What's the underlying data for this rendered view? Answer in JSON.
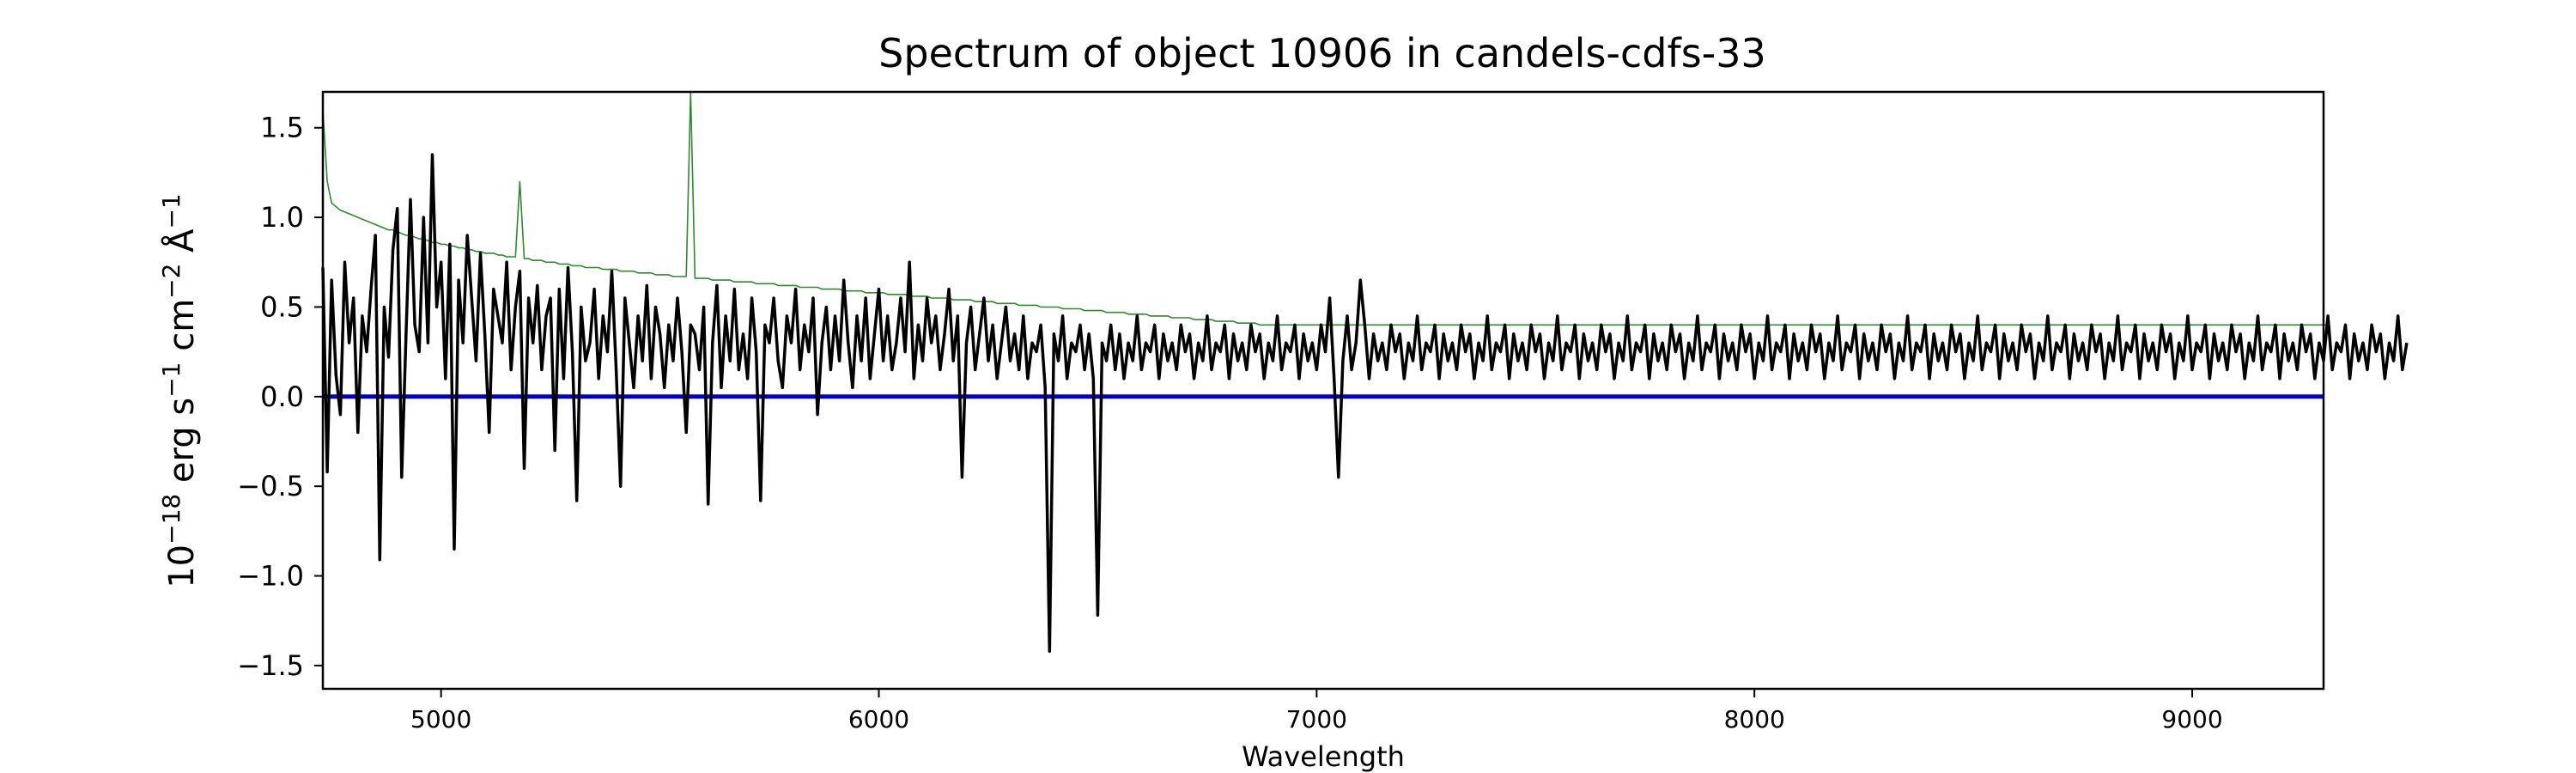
{
  "chart_data": {
    "type": "line",
    "title": "Spectrum of object 10906 in candels-cdfs-33",
    "xlabel": "Wavelength",
    "ylabel": {
      "base": "10",
      "base_exp": "−18",
      "unit1": " erg s",
      "unit1_exp": "−1",
      "unit2": " cm",
      "unit2_exp": "−2",
      "unit3": " Å",
      "unit3_exp": "−1"
    },
    "xlim": [
      4730,
      9300
    ],
    "ylim": [
      -1.63,
      1.7
    ],
    "x_ticks": [
      5000,
      6000,
      7000,
      8000,
      9000
    ],
    "x_tick_labels": [
      "5000",
      "6000",
      "7000",
      "8000",
      "9000"
    ],
    "y_ticks": [
      1.5,
      1.0,
      0.5,
      0.0,
      -0.5,
      -1.0,
      -1.5
    ],
    "y_tick_labels": [
      "1.5",
      "1.0",
      "0.5",
      "0.0",
      "−0.5",
      "−1.0",
      "−1.5"
    ],
    "grid": false,
    "legend": "none",
    "series": [
      {
        "role": "flux",
        "color": "#000000",
        "x_start": 4730,
        "x_end": 9300,
        "step": 10,
        "values": [
          0.72,
          -0.42,
          0.65,
          0.12,
          -0.1,
          0.75,
          0.3,
          0.55,
          -0.2,
          0.45,
          0.25,
          0.6,
          0.9,
          -0.91,
          0.5,
          0.22,
          0.82,
          1.05,
          -0.45,
          0.35,
          1.1,
          0.4,
          0.25,
          1.0,
          0.3,
          1.35,
          0.5,
          0.75,
          0.1,
          0.85,
          -0.85,
          0.65,
          0.3,
          0.9,
          0.55,
          0.2,
          0.8,
          0.35,
          -0.2,
          0.6,
          0.45,
          0.3,
          0.75,
          0.15,
          0.5,
          0.7,
          -0.4,
          0.55,
          0.3,
          0.62,
          0.15,
          0.45,
          0.55,
          -0.3,
          0.6,
          0.1,
          0.72,
          0.25,
          -0.58,
          0.5,
          0.2,
          0.3,
          0.6,
          0.1,
          0.45,
          0.25,
          0.7,
          0.15,
          -0.5,
          0.55,
          0.3,
          0.05,
          0.45,
          0.2,
          0.62,
          0.1,
          0.5,
          0.35,
          0.05,
          0.4,
          0.2,
          0.55,
          0.25,
          -0.2,
          0.4,
          0.35,
          0.15,
          0.5,
          -0.6,
          0.3,
          0.62,
          0.05,
          0.45,
          0.2,
          0.6,
          0.15,
          0.35,
          0.1,
          0.55,
          0.25,
          -0.58,
          0.4,
          0.3,
          0.55,
          0.2,
          0.05,
          0.45,
          0.3,
          0.6,
          0.15,
          0.4,
          0.25,
          0.55,
          -0.1,
          0.3,
          0.5,
          0.15,
          0.45,
          0.2,
          0.65,
          0.3,
          0.05,
          0.45,
          0.2,
          0.55,
          0.1,
          0.35,
          0.6,
          0.2,
          0.45,
          0.15,
          0.3,
          0.55,
          0.25,
          0.75,
          0.1,
          0.4,
          0.2,
          0.55,
          0.3,
          0.45,
          0.15,
          0.35,
          0.6,
          0.2,
          0.45,
          -0.45,
          0.3,
          0.5,
          0.15,
          0.35,
          0.55,
          0.2,
          0.4,
          0.1,
          0.3,
          0.5,
          0.2,
          0.35,
          0.15,
          0.45,
          0.1,
          0.3,
          0.25,
          0.4,
          0.05,
          -1.42,
          0.35,
          0.2,
          0.45,
          0.1,
          0.3,
          0.25,
          0.4,
          0.15,
          0.35,
          0.1,
          -1.22,
          0.3,
          0.2,
          0.4,
          0.15,
          0.35,
          0.1,
          0.3,
          0.2,
          0.45,
          0.15,
          0.3,
          0.25,
          0.4,
          0.1,
          0.35,
          0.2,
          0.3,
          0.15,
          0.4,
          0.25,
          0.35,
          0.1,
          0.3,
          0.2,
          0.45,
          0.15,
          0.3,
          0.25,
          0.4,
          0.1,
          0.35,
          0.2,
          0.3,
          0.15,
          0.4,
          0.25,
          0.35,
          0.1,
          0.3,
          0.2,
          0.45,
          0.15,
          0.3,
          0.25,
          0.4,
          0.1,
          0.35,
          0.2,
          0.3,
          0.15,
          0.4,
          0.25,
          0.55,
          0.1,
          -0.45,
          0.2,
          0.45,
          0.15,
          0.3,
          0.65,
          0.4,
          0.1,
          0.35,
          0.2,
          0.3,
          0.15,
          0.4,
          0.25,
          0.35,
          0.1,
          0.3,
          0.2,
          0.45,
          0.15,
          0.3,
          0.25,
          0.4,
          0.1,
          0.35,
          0.2,
          0.3,
          0.15,
          0.4,
          0.25,
          0.35,
          0.1,
          0.3,
          0.2,
          0.45,
          0.15,
          0.3,
          0.25,
          0.4,
          0.1,
          0.35,
          0.2,
          0.3,
          0.15,
          0.4,
          0.25,
          0.35,
          0.1,
          0.3,
          0.2,
          0.45,
          0.15,
          0.3,
          0.25,
          0.4,
          0.1,
          0.35,
          0.2,
          0.3,
          0.15,
          0.4,
          0.25,
          0.35,
          0.1,
          0.3,
          0.2,
          0.45,
          0.15,
          0.3,
          0.25,
          0.4,
          0.1,
          0.35,
          0.2,
          0.3,
          0.15,
          0.4,
          0.25,
          0.35,
          0.1,
          0.3,
          0.2,
          0.45,
          0.15,
          0.3,
          0.25,
          0.4,
          0.1,
          0.35,
          0.2,
          0.3,
          0.15,
          0.4,
          0.25,
          0.35,
          0.1,
          0.3,
          0.2,
          0.45,
          0.15,
          0.3,
          0.25,
          0.4,
          0.1,
          0.35,
          0.2,
          0.3,
          0.15,
          0.4,
          0.25,
          0.35,
          0.1,
          0.3,
          0.2,
          0.45,
          0.15,
          0.3,
          0.25,
          0.4,
          0.1,
          0.35,
          0.2,
          0.3,
          0.15,
          0.4,
          0.25,
          0.35,
          0.1,
          0.3,
          0.2,
          0.45,
          0.15,
          0.3,
          0.25,
          0.4,
          0.1,
          0.35,
          0.2,
          0.3,
          0.15,
          0.4,
          0.25,
          0.35,
          0.1,
          0.3,
          0.2,
          0.45,
          0.15,
          0.3,
          0.25,
          0.4,
          0.1,
          0.35,
          0.2,
          0.3,
          0.15,
          0.4,
          0.25,
          0.35,
          0.1,
          0.3,
          0.2,
          0.45,
          0.15,
          0.3,
          0.25,
          0.4,
          0.1,
          0.35,
          0.2,
          0.3,
          0.15,
          0.4,
          0.25,
          0.35,
          0.1,
          0.3,
          0.2,
          0.45,
          0.15,
          0.3,
          0.25,
          0.4,
          0.1,
          0.35,
          0.2,
          0.3,
          0.15,
          0.4,
          0.25,
          0.35,
          0.1,
          0.3,
          0.2,
          0.45,
          0.15,
          0.3,
          0.25,
          0.4,
          0.1,
          0.35,
          0.2,
          0.3,
          0.15,
          0.4,
          0.25,
          0.35,
          0.1,
          0.3,
          0.2,
          0.45,
          0.15,
          0.3,
          0.25,
          0.4,
          0.1,
          0.35,
          0.2,
          0.3,
          0.15,
          0.4,
          0.25,
          0.35,
          0.1,
          0.3,
          0.2,
          0.45,
          0.15,
          0.3,
          0.25,
          0.4,
          0.1,
          0.35,
          0.2,
          0.3,
          0.15,
          0.4,
          0.25,
          0.35,
          0.1,
          0.3,
          0.2,
          0.45,
          0.15,
          0.3
        ]
      },
      {
        "role": "error",
        "color": "#2e8b2e",
        "x_start": 4730,
        "x_end": 9300,
        "step": 10,
        "values": [
          1.6,
          1.2,
          1.08,
          1.06,
          1.04,
          1.03,
          1.02,
          1.01,
          1.0,
          0.99,
          0.98,
          0.97,
          0.96,
          0.95,
          0.94,
          0.93,
          0.93,
          0.92,
          0.91,
          0.9,
          0.9,
          0.89,
          0.88,
          0.88,
          0.87,
          0.86,
          0.86,
          0.85,
          0.85,
          0.84,
          0.84,
          0.83,
          0.83,
          0.82,
          0.82,
          0.81,
          0.81,
          0.8,
          0.8,
          0.8,
          0.79,
          0.79,
          0.78,
          0.78,
          0.78,
          1.2,
          0.77,
          0.77,
          0.76,
          0.76,
          0.76,
          0.75,
          0.75,
          0.75,
          0.74,
          0.74,
          0.74,
          0.73,
          0.73,
          0.73,
          0.72,
          0.72,
          0.72,
          0.72,
          0.71,
          0.71,
          0.71,
          0.71,
          0.7,
          0.7,
          0.7,
          0.7,
          0.69,
          0.69,
          0.69,
          0.69,
          0.68,
          0.68,
          0.68,
          0.68,
          0.67,
          0.67,
          0.67,
          0.67,
          1.7,
          0.66,
          0.66,
          0.66,
          0.66,
          0.65,
          0.65,
          0.65,
          0.65,
          0.65,
          0.64,
          0.64,
          0.64,
          0.64,
          0.64,
          0.63,
          0.63,
          0.63,
          0.63,
          0.63,
          0.62,
          0.62,
          0.62,
          0.62,
          0.62,
          0.61,
          0.61,
          0.61,
          0.61,
          0.61,
          0.6,
          0.6,
          0.6,
          0.6,
          0.6,
          0.59,
          0.59,
          0.59,
          0.59,
          0.59,
          0.58,
          0.58,
          0.58,
          0.58,
          0.58,
          0.57,
          0.57,
          0.57,
          0.57,
          0.57,
          0.56,
          0.56,
          0.56,
          0.56,
          0.56,
          0.55,
          0.55,
          0.55,
          0.55,
          0.55,
          0.54,
          0.54,
          0.54,
          0.54,
          0.54,
          0.53,
          0.53,
          0.53,
          0.53,
          0.53,
          0.52,
          0.52,
          0.52,
          0.52,
          0.52,
          0.51,
          0.51,
          0.51,
          0.51,
          0.51,
          0.5,
          0.5,
          0.5,
          0.5,
          0.5,
          0.49,
          0.49,
          0.49,
          0.49,
          0.49,
          0.48,
          0.48,
          0.48,
          0.48,
          0.48,
          0.47,
          0.47,
          0.47,
          0.47,
          0.47,
          0.46,
          0.46,
          0.46,
          0.46,
          0.46,
          0.45,
          0.45,
          0.45,
          0.45,
          0.45,
          0.44,
          0.44,
          0.44,
          0.44,
          0.44,
          0.43,
          0.43,
          0.43,
          0.43,
          0.43,
          0.42,
          0.42,
          0.42,
          0.42,
          0.42,
          0.41,
          0.41,
          0.41,
          0.41,
          0.41,
          0.4,
          0.4,
          0.4,
          0.4,
          0.4,
          0.4,
          0.4,
          0.4,
          0.4,
          0.4,
          0.4,
          0.4,
          0.4,
          0.4,
          0.4,
          0.4,
          0.4,
          0.4,
          0.4,
          0.4,
          0.4,
          0.4,
          0.4,
          0.4,
          0.4,
          0.4,
          0.4,
          0.4,
          0.4,
          0.4,
          0.4,
          0.4,
          0.4,
          0.4,
          0.4,
          0.4,
          0.4,
          0.4,
          0.4,
          0.4,
          0.4,
          0.4,
          0.4,
          0.4,
          0.4,
          0.4,
          0.4,
          0.4,
          0.4,
          0.4,
          0.4,
          0.4,
          0.4,
          0.4,
          0.4,
          0.4,
          0.4,
          0.4,
          0.4,
          0.4,
          0.4,
          0.4,
          0.4,
          0.4,
          0.4,
          0.4,
          0.4,
          0.4,
          0.4,
          0.4,
          0.4,
          0.4,
          0.4,
          0.4,
          0.4,
          0.4,
          0.4,
          0.4,
          0.4,
          0.4,
          0.4,
          0.4,
          0.4,
          0.4,
          0.4,
          0.4,
          0.4,
          0.4,
          0.4,
          0.4,
          0.4,
          0.4,
          0.4,
          0.4,
          0.4,
          0.4,
          0.4,
          0.4,
          0.4,
          0.4,
          0.4,
          0.4,
          0.4,
          0.4,
          0.4,
          0.4,
          0.4,
          0.4,
          0.4,
          0.4,
          0.4,
          0.4,
          0.4,
          0.4,
          0.4,
          0.4,
          0.4,
          0.4,
          0.4,
          0.4,
          0.4,
          0.4,
          0.4,
          0.4,
          0.4,
          0.4,
          0.4,
          0.4,
          0.4,
          0.4,
          0.4,
          0.4,
          0.4,
          0.4,
          0.4,
          0.4,
          0.4,
          0.4,
          0.4,
          0.4,
          0.4,
          0.4,
          0.4,
          0.4,
          0.4,
          0.4,
          0.4,
          0.4,
          0.4,
          0.4,
          0.4,
          0.4,
          0.4,
          0.4,
          0.4,
          0.4,
          0.4,
          0.4,
          0.4,
          0.4,
          0.4,
          0.4,
          0.4,
          0.4,
          0.4,
          0.4,
          0.4,
          0.4,
          0.4,
          0.4,
          0.4,
          0.4,
          0.4,
          0.4,
          0.4,
          0.4,
          0.4,
          0.4,
          0.4,
          0.4,
          0.4,
          0.4,
          0.4,
          0.4,
          0.4,
          0.4,
          0.4,
          0.4,
          0.4,
          0.4,
          0.4,
          0.4,
          0.4,
          0.4,
          0.4,
          0.4,
          0.4,
          0.4,
          0.4,
          0.4,
          0.4,
          0.4,
          0.4,
          0.4,
          0.4,
          0.4,
          0.4,
          0.4,
          0.4,
          0.4,
          0.4,
          0.4,
          0.4,
          0.4,
          0.4,
          0.4,
          0.4,
          0.4,
          0.4,
          0.4,
          0.4,
          0.4,
          0.4,
          0.4,
          0.4,
          0.4,
          0.4,
          0.4,
          0.4,
          0.4,
          0.4,
          0.4,
          0.4,
          0.4,
          0.4,
          0.4,
          0.4,
          0.4,
          0.4,
          0.4,
          0.4,
          0.4,
          0.4,
          0.4,
          0.4
        ]
      },
      {
        "role": "zero-line",
        "color": "#0000cc",
        "y": 0.0
      }
    ]
  }
}
